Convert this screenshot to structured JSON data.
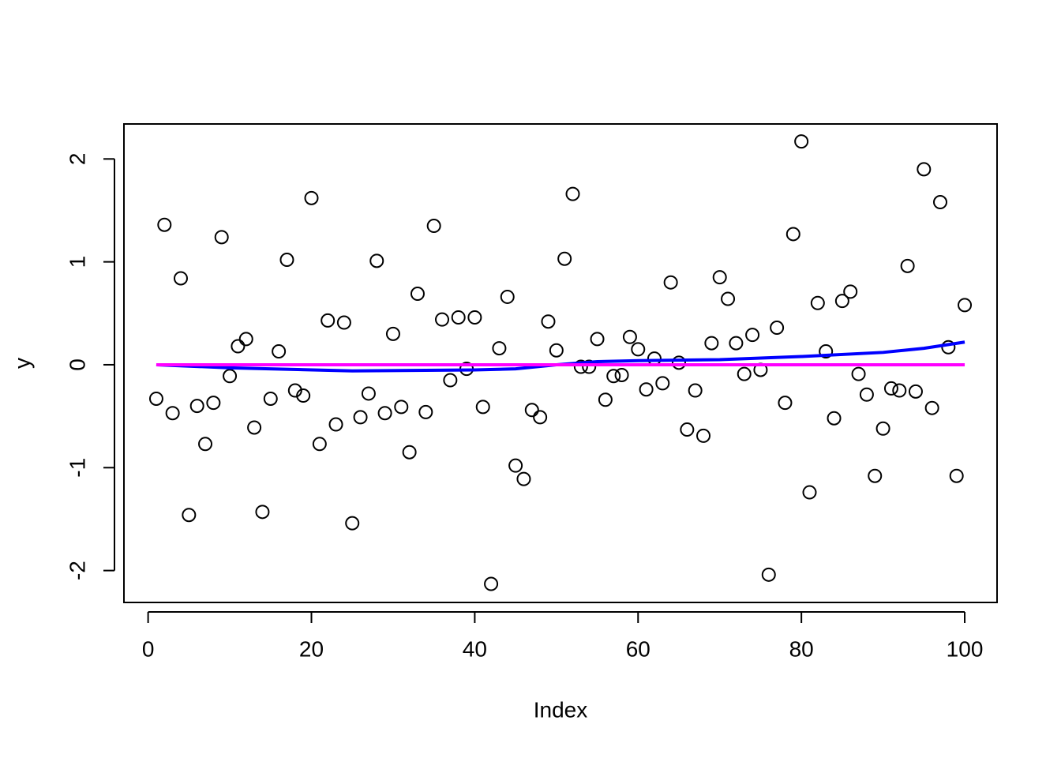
{
  "chart_data": {
    "type": "scatter",
    "x_label": "Index",
    "y_label": "y",
    "xlim": [
      -2.96,
      103.96
    ],
    "ylim": [
      -2.31,
      2.34
    ],
    "xticks": [
      0,
      20,
      40,
      60,
      80,
      100
    ],
    "yticks": [
      -2,
      -1,
      0,
      1,
      2
    ],
    "series": [
      {
        "type": "scatter",
        "color": "#000000",
        "x": [
          1,
          2,
          3,
          4,
          5,
          6,
          7,
          8,
          9,
          10,
          11,
          12,
          13,
          14,
          15,
          16,
          17,
          18,
          19,
          20,
          21,
          22,
          23,
          24,
          25,
          26,
          27,
          28,
          29,
          30,
          31,
          32,
          33,
          34,
          35,
          36,
          37,
          38,
          39,
          40,
          41,
          42,
          43,
          44,
          45,
          46,
          47,
          48,
          49,
          50,
          51,
          52,
          53,
          54,
          55,
          56,
          57,
          58,
          59,
          60,
          61,
          62,
          63,
          64,
          65,
          66,
          67,
          68,
          69,
          70,
          71,
          72,
          73,
          74,
          75,
          76,
          77,
          78,
          79,
          80,
          81,
          82,
          83,
          84,
          85,
          86,
          87,
          88,
          89,
          90,
          91,
          92,
          93,
          94,
          95,
          96,
          97,
          98,
          99,
          100
        ],
        "values": [
          -0.33,
          1.36,
          -0.47,
          0.84,
          -1.46,
          -0.4,
          -0.77,
          -0.37,
          1.24,
          -0.11,
          0.18,
          0.25,
          -0.61,
          -1.43,
          -0.33,
          0.13,
          1.02,
          -0.25,
          -0.3,
          1.62,
          -0.77,
          0.43,
          -0.58,
          0.41,
          -1.54,
          -0.51,
          -0.28,
          1.01,
          -0.47,
          0.3,
          -0.41,
          -0.85,
          0.69,
          -0.46,
          1.35,
          0.44,
          -0.15,
          0.46,
          -0.04,
          0.46,
          -0.41,
          -2.13,
          0.16,
          0.66,
          -0.98,
          -1.11,
          -0.44,
          -0.51,
          0.42,
          0.14,
          1.03,
          1.66,
          -0.02,
          -0.02,
          0.25,
          -0.34,
          -0.11,
          -0.1,
          0.27,
          0.15,
          -0.24,
          0.06,
          -0.18,
          0.8,
          0.02,
          -0.63,
          -0.25,
          -0.69,
          0.21,
          0.85,
          0.64,
          0.21,
          -0.09,
          0.29,
          -0.05,
          -2.04,
          0.36,
          -0.37,
          1.27,
          2.17,
          -1.24,
          0.6,
          0.13,
          -0.52,
          0.62,
          0.71,
          -0.09,
          -0.29,
          -1.08,
          -0.62,
          -0.23,
          -0.25,
          0.96,
          -0.26,
          1.9,
          -0.42,
          1.58,
          0.17,
          -1.08,
          0.58
        ]
      },
      {
        "type": "line",
        "color": "#0000ff",
        "x": [
          1,
          10,
          25,
          40,
          45,
          50,
          55,
          60,
          70,
          80,
          90,
          95,
          100
        ],
        "values": [
          0,
          -0.03,
          -0.06,
          -0.05,
          -0.04,
          0,
          0.03,
          0.04,
          0.05,
          0.08,
          0.12,
          0.16,
          0.22
        ]
      },
      {
        "type": "line",
        "color": "#ff00ff",
        "x": [
          1,
          100
        ],
        "values": [
          0,
          0
        ]
      }
    ]
  }
}
